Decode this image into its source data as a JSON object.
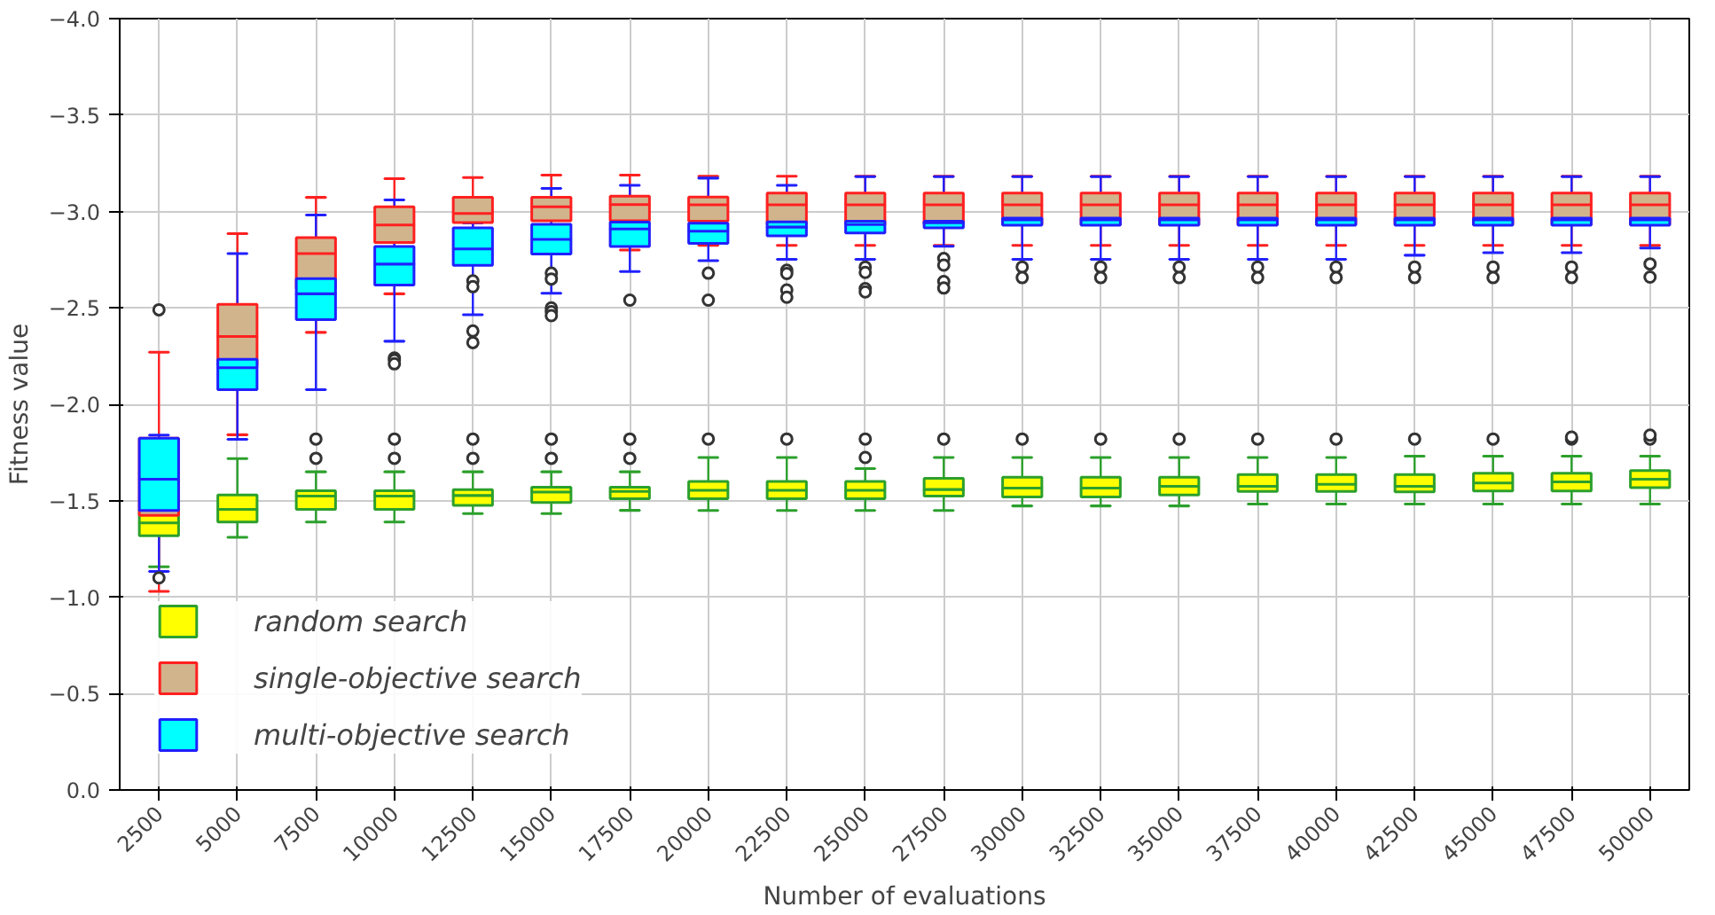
{
  "chart_data": {
    "type": "box",
    "xlabel": "Number of evaluations",
    "ylabel": "Fitness value",
    "categories": [
      "2500",
      "5000",
      "7500",
      "10000",
      "12500",
      "15000",
      "17500",
      "20000",
      "22500",
      "25000",
      "27500",
      "30000",
      "32500",
      "35000",
      "37500",
      "40000",
      "42500",
      "45000",
      "47500",
      "50000"
    ],
    "ylim": [
      0,
      -4
    ],
    "yticks": [
      {
        "value": 0,
        "label": "0.0"
      },
      {
        "value": -0.5,
        "label": "−0.5"
      },
      {
        "value": -1,
        "label": "−1.0"
      },
      {
        "value": -1.5,
        "label": "−1.5"
      },
      {
        "value": -2,
        "label": "−2.0"
      },
      {
        "value": -2.5,
        "label": "−2.5"
      },
      {
        "value": -3,
        "label": "−3.0"
      },
      {
        "value": -3.5,
        "label": "−3.5"
      },
      {
        "value": -4,
        "label": "−4.0"
      }
    ],
    "grid": true,
    "legend": "bottom left",
    "series": [
      {
        "name": "random search",
        "color": "#ffff00",
        "boxes": [
          {
            "low": -1.65,
            "q1": -1.45,
            "median": -1.385,
            "q3": -1.318,
            "high": -1.157
          },
          {
            "low": -1.718,
            "q1": -1.53,
            "median": -1.455,
            "q3": -1.39,
            "high": -1.31
          },
          {
            "low": -1.65,
            "q1": -1.552,
            "median": -1.524,
            "q3": -1.455,
            "high": -1.39,
            "outliers": [
              -1.82,
              -1.72
            ]
          },
          {
            "low": -1.65,
            "q1": -1.552,
            "median": -1.524,
            "q3": -1.455,
            "high": -1.39,
            "outliers": [
              -1.82,
              -1.72
            ]
          },
          {
            "low": -1.65,
            "q1": -1.558,
            "median": -1.527,
            "q3": -1.476,
            "high": -1.433,
            "outliers": [
              -1.82,
              -1.72
            ]
          },
          {
            "low": -1.65,
            "q1": -1.57,
            "median": -1.545,
            "q3": -1.491,
            "high": -1.433,
            "outliers": [
              -1.82,
              -1.72
            ]
          },
          {
            "low": -1.65,
            "q1": -1.57,
            "median": -1.548,
            "q3": -1.51,
            "high": -1.45,
            "outliers": [
              -1.82,
              -1.72
            ]
          },
          {
            "low": -1.724,
            "q1": -1.6,
            "median": -1.554,
            "q3": -1.51,
            "high": -1.449,
            "outliers": [
              -1.82
            ]
          },
          {
            "low": -1.724,
            "q1": -1.6,
            "median": -1.554,
            "q3": -1.51,
            "high": -1.449,
            "outliers": [
              -1.82
            ]
          },
          {
            "low": -1.667,
            "q1": -1.6,
            "median": -1.554,
            "q3": -1.51,
            "high": -1.449,
            "outliers": [
              -1.82,
              -1.724
            ]
          },
          {
            "low": -1.724,
            "q1": -1.616,
            "median": -1.558,
            "q3": -1.524,
            "high": -1.449,
            "outliers": [
              -1.82
            ]
          },
          {
            "low": -1.724,
            "q1": -1.622,
            "median": -1.565,
            "q3": -1.52,
            "high": -1.473,
            "outliers": [
              -1.82
            ]
          },
          {
            "low": -1.724,
            "q1": -1.622,
            "median": -1.565,
            "q3": -1.52,
            "high": -1.473,
            "outliers": [
              -1.82
            ]
          },
          {
            "low": -1.724,
            "q1": -1.622,
            "median": -1.575,
            "q3": -1.53,
            "high": -1.473,
            "outliers": [
              -1.82
            ]
          },
          {
            "low": -1.724,
            "q1": -1.636,
            "median": -1.575,
            "q3": -1.548,
            "high": -1.483,
            "outliers": [
              -1.82
            ]
          },
          {
            "low": -1.724,
            "q1": -1.636,
            "median": -1.585,
            "q3": -1.548,
            "high": -1.483,
            "outliers": [
              -1.82
            ]
          },
          {
            "low": -1.731,
            "q1": -1.636,
            "median": -1.575,
            "q3": -1.546,
            "high": -1.483,
            "outliers": [
              -1.82
            ]
          },
          {
            "low": -1.731,
            "q1": -1.643,
            "median": -1.592,
            "q3": -1.551,
            "high": -1.483,
            "outliers": [
              -1.82
            ]
          },
          {
            "low": -1.731,
            "q1": -1.643,
            "median": -1.598,
            "q3": -1.551,
            "high": -1.483,
            "outliers": [
              -1.82,
              -1.83
            ]
          },
          {
            "low": -1.731,
            "q1": -1.656,
            "median": -1.612,
            "q3": -1.568,
            "high": -1.483,
            "outliers": [
              -1.82,
              -1.84
            ]
          }
        ]
      },
      {
        "name": "single-objective search",
        "color": "#d2b48c",
        "boxes": [
          {
            "low": -2.27,
            "q1": -1.824,
            "median": -1.642,
            "q3": -1.424,
            "high": -1.03,
            "outliers": [
              -2.49
            ]
          },
          {
            "low": -2.885,
            "q1": -2.518,
            "median": -2.352,
            "q3": -2.2,
            "high": -1.842
          },
          {
            "low": -3.073,
            "q1": -2.864,
            "median": -2.782,
            "q3": -2.6,
            "high": -2.373
          },
          {
            "low": -3.17,
            "q1": -3.024,
            "median": -2.93,
            "q3": -2.839,
            "high": -2.573
          },
          {
            "low": -3.176,
            "q1": -3.073,
            "median": -2.99,
            "q3": -2.942,
            "high": -2.78,
            "outliers": [
              -2.64,
              -2.61
            ]
          },
          {
            "low": -3.188,
            "q1": -3.073,
            "median": -3.024,
            "q3": -2.952,
            "high": -2.8,
            "outliers": [
              -2.68,
              -2.65
            ]
          },
          {
            "low": -3.188,
            "q1": -3.079,
            "median": -3.036,
            "q3": -2.952,
            "high": -2.8
          },
          {
            "low": -3.183,
            "q1": -3.075,
            "median": -3.034,
            "q3": -2.95,
            "high": -2.824
          },
          {
            "low": -3.183,
            "q1": -3.095,
            "median": -3.034,
            "q3": -2.932,
            "high": -2.824
          },
          {
            "low": -3.183,
            "q1": -3.095,
            "median": -3.034,
            "q3": -2.932,
            "high": -2.824
          },
          {
            "low": -3.183,
            "q1": -3.095,
            "median": -3.034,
            "q3": -2.932,
            "high": -2.824
          },
          {
            "low": -3.183,
            "q1": -3.095,
            "median": -3.034,
            "q3": -2.932,
            "high": -2.824
          },
          {
            "low": -3.183,
            "q1": -3.095,
            "median": -3.034,
            "q3": -2.932,
            "high": -2.824
          },
          {
            "low": -3.183,
            "q1": -3.095,
            "median": -3.034,
            "q3": -2.932,
            "high": -2.824
          },
          {
            "low": -3.183,
            "q1": -3.095,
            "median": -3.034,
            "q3": -2.932,
            "high": -2.824
          },
          {
            "low": -3.183,
            "q1": -3.095,
            "median": -3.034,
            "q3": -2.932,
            "high": -2.824
          },
          {
            "low": -3.183,
            "q1": -3.095,
            "median": -3.034,
            "q3": -2.932,
            "high": -2.824
          },
          {
            "low": -3.183,
            "q1": -3.095,
            "median": -3.034,
            "q3": -2.932,
            "high": -2.824
          },
          {
            "low": -3.183,
            "q1": -3.095,
            "median": -3.034,
            "q3": -2.932,
            "high": -2.824
          },
          {
            "low": -3.183,
            "q1": -3.095,
            "median": -3.034,
            "q3": -2.932,
            "high": -2.824
          }
        ]
      },
      {
        "name": "multi-objective search",
        "color": "#00ffff",
        "boxes": [
          {
            "low": -1.84,
            "q1": -1.824,
            "median": -1.612,
            "q3": -1.45,
            "high": -1.133,
            "outliers": [
              -1.1
            ]
          },
          {
            "low": -2.782,
            "q1": -2.233,
            "median": -2.19,
            "q3": -2.076,
            "high": -1.818
          },
          {
            "low": -2.982,
            "q1": -2.652,
            "median": -2.573,
            "q3": -2.439,
            "high": -2.076
          },
          {
            "low": -3.06,
            "q1": -2.818,
            "median": -2.727,
            "q3": -2.618,
            "high": -2.327,
            "outliers": [
              -2.24,
              -2.23,
              -2.21
            ]
          },
          {
            "low": -2.94,
            "q1": -2.915,
            "median": -2.806,
            "q3": -2.721,
            "high": -2.464,
            "outliers": [
              -2.38,
              -2.32
            ]
          },
          {
            "low": -3.12,
            "q1": -2.933,
            "median": -2.855,
            "q3": -2.779,
            "high": -2.576,
            "outliers": [
              -2.5,
              -2.48,
              -2.46
            ]
          },
          {
            "low": -3.136,
            "q1": -2.945,
            "median": -2.909,
            "q3": -2.818,
            "high": -2.688,
            "outliers": [
              -2.54
            ]
          },
          {
            "low": -3.173,
            "q1": -2.939,
            "median": -2.898,
            "q3": -2.834,
            "high": -2.745,
            "outliers": [
              -2.68,
              -2.54
            ]
          },
          {
            "low": -3.136,
            "q1": -2.946,
            "median": -2.919,
            "q3": -2.874,
            "high": -2.752,
            "outliers": [
              -2.695,
              -2.678,
              -2.593,
              -2.555
            ]
          },
          {
            "low": -3.18,
            "q1": -2.949,
            "median": -2.932,
            "q3": -2.888,
            "high": -2.752,
            "outliers": [
              -2.712,
              -2.684,
              -2.6,
              -2.583
            ]
          },
          {
            "low": -3.18,
            "q1": -2.949,
            "median": -2.942,
            "q3": -2.915,
            "high": -2.82,
            "outliers": [
              -2.756,
              -2.722,
              -2.637,
              -2.603
            ]
          },
          {
            "low": -3.18,
            "q1": -2.966,
            "median": -2.956,
            "q3": -2.929,
            "high": -2.752,
            "outliers": [
              -2.712,
              -2.657
            ]
          },
          {
            "low": -3.18,
            "q1": -2.966,
            "median": -2.956,
            "q3": -2.929,
            "high": -2.752,
            "outliers": [
              -2.712,
              -2.657
            ]
          },
          {
            "low": -3.18,
            "q1": -2.966,
            "median": -2.956,
            "q3": -2.929,
            "high": -2.752,
            "outliers": [
              -2.712,
              -2.657
            ]
          },
          {
            "low": -3.18,
            "q1": -2.966,
            "median": -2.956,
            "q3": -2.929,
            "high": -2.752,
            "outliers": [
              -2.712,
              -2.657
            ]
          },
          {
            "low": -3.18,
            "q1": -2.966,
            "median": -2.956,
            "q3": -2.929,
            "high": -2.752,
            "outliers": [
              -2.712,
              -2.657
            ]
          },
          {
            "low": -3.18,
            "q1": -2.966,
            "median": -2.956,
            "q3": -2.929,
            "high": -2.773,
            "outliers": [
              -2.712,
              -2.657
            ]
          },
          {
            "low": -3.18,
            "q1": -2.966,
            "median": -2.956,
            "q3": -2.929,
            "high": -2.786,
            "outliers": [
              -2.712,
              -2.657
            ]
          },
          {
            "low": -3.18,
            "q1": -2.966,
            "median": -2.956,
            "q3": -2.929,
            "high": -2.786,
            "outliers": [
              -2.712,
              -2.657
            ]
          },
          {
            "low": -3.18,
            "q1": -2.966,
            "median": -2.956,
            "q3": -2.929,
            "high": -2.81,
            "outliers": [
              -2.728,
              -2.66
            ]
          }
        ]
      }
    ]
  }
}
